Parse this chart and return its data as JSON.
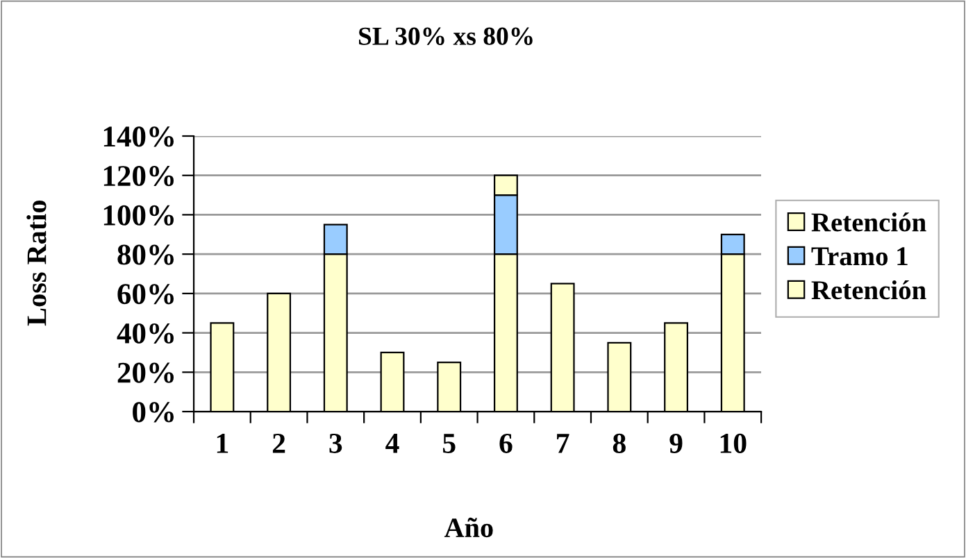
{
  "chart_data": {
    "type": "bar",
    "title": "SL 30% xs 80%",
    "xlabel": "Año",
    "ylabel": "Loss Ratio",
    "categories": [
      "1",
      "2",
      "3",
      "4",
      "5",
      "6",
      "7",
      "8",
      "9",
      "10"
    ],
    "stacked": true,
    "series": [
      {
        "name": "Retención",
        "color": "#ffffcc",
        "values": [
          45,
          60,
          80,
          30,
          25,
          80,
          65,
          35,
          45,
          80
        ]
      },
      {
        "name": "Tramo 1",
        "color": "#99ccff",
        "values": [
          null,
          null,
          15,
          null,
          null,
          30,
          null,
          null,
          null,
          10
        ]
      },
      {
        "name": "Retención",
        "color": "#ffffcc",
        "values": [
          null,
          null,
          null,
          null,
          null,
          10,
          null,
          null,
          null,
          null
        ]
      }
    ],
    "ylim": [
      0,
      140
    ],
    "yticks": [
      {
        "value": 0,
        "label": "0%"
      },
      {
        "value": 20,
        "label": "20%"
      },
      {
        "value": 40,
        "label": "40%"
      },
      {
        "value": 60,
        "label": "60%"
      },
      {
        "value": 80,
        "label": "80%"
      },
      {
        "value": 100,
        "label": "100%"
      },
      {
        "value": 120,
        "label": "120%"
      },
      {
        "value": 140,
        "label": "140%"
      }
    ],
    "grid": "y",
    "legend": "right"
  }
}
